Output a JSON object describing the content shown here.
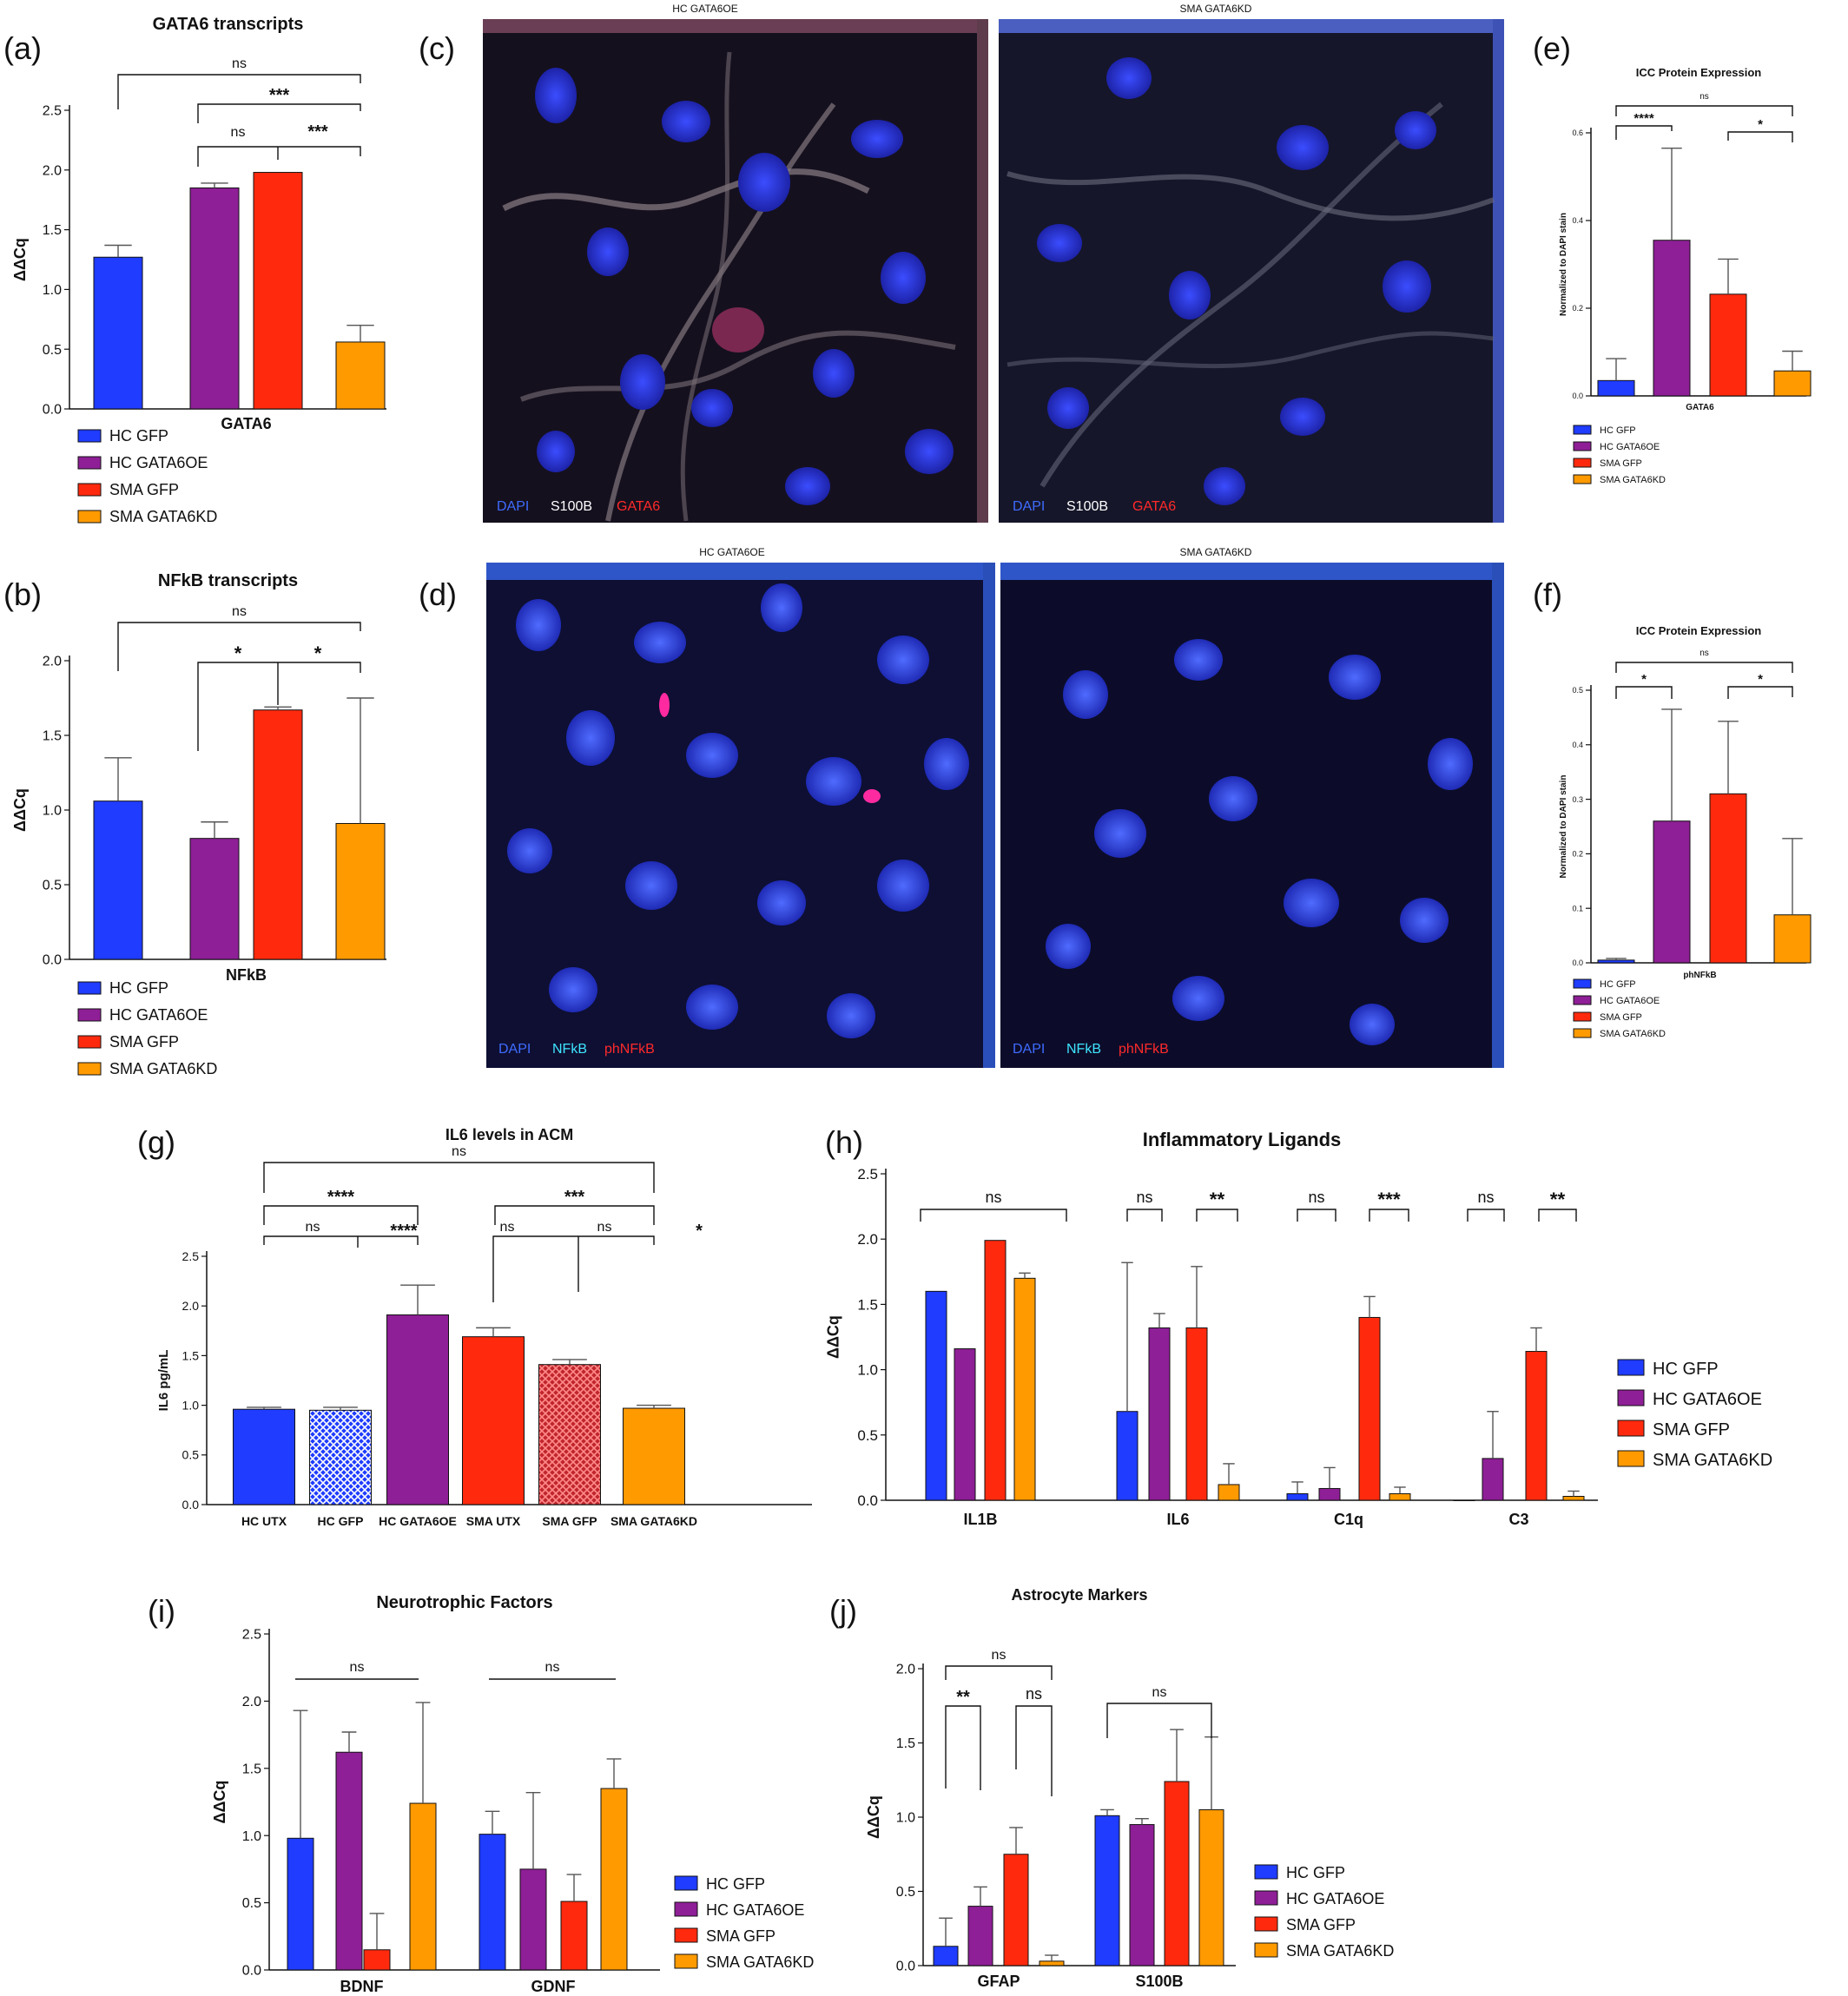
{
  "colors": {
    "hc_gfp": "#1f3cff",
    "hc_gata6oe": "#8e1f96",
    "sma_gfp": "#ff2a0d",
    "sma_gata6kd": "#ff9a00"
  },
  "legend_labels": [
    "HC GFP",
    "HC GATA6OE",
    "SMA GFP",
    "SMA GATA6KD"
  ],
  "panel_labels": {
    "a": "(a)",
    "b": "(b)",
    "c": "(c)",
    "d": "(d)",
    "e": "(e)",
    "f": "(f)",
    "g": "(g)",
    "h": "(h)",
    "i": "(i)",
    "j": "(j)"
  },
  "microscopy": {
    "c": {
      "left_title": "HC GATA6OE",
      "right_title": "SMA GATA6KD",
      "channels": [
        {
          "text": "DAPI",
          "color": "#3f6cff"
        },
        {
          "text": "S100B",
          "color": "#ffffff"
        },
        {
          "text": "GATA6",
          "color": "#ff2a2a"
        }
      ]
    },
    "d": {
      "left_title": "HC GATA6OE",
      "right_title": "SMA GATA6KD",
      "channels": [
        {
          "text": "DAPI",
          "color": "#3f6cff"
        },
        {
          "text": "NFkB",
          "color": "#3fe6ff"
        },
        {
          "text": "phNFkB",
          "color": "#ff2a2a"
        }
      ]
    }
  },
  "chart_data": [
    {
      "id": "a",
      "type": "bar",
      "title": "GATA6 transcripts",
      "ylabel": "ΔΔCq",
      "categories": [
        "GATA6"
      ],
      "ylim": [
        0,
        2.5
      ],
      "yticks": [
        "0.0",
        "0.5",
        "1.0",
        "1.5",
        "2.0",
        "2.5"
      ],
      "series": [
        {
          "name": "HC GFP",
          "values": [
            1.27
          ],
          "errors": [
            0.1
          ]
        },
        {
          "name": "HC GATA6OE",
          "values": [
            1.85
          ],
          "errors": [
            0.04
          ]
        },
        {
          "name": "SMA GFP",
          "values": [
            1.98
          ],
          "errors": [
            0.0
          ]
        },
        {
          "name": "SMA GATA6KD",
          "values": [
            0.56
          ],
          "errors": [
            0.14
          ]
        }
      ],
      "significance": [
        {
          "label": "ns"
        },
        {
          "label": "***"
        },
        {
          "label": "ns"
        },
        {
          "label": "***"
        }
      ]
    },
    {
      "id": "b",
      "type": "bar",
      "title": "NFkB transcripts",
      "ylabel": "ΔΔCq",
      "categories": [
        "NFkB"
      ],
      "ylim": [
        0,
        2.0
      ],
      "yticks": [
        "0.0",
        "0.5",
        "1.0",
        "1.5",
        "2.0"
      ],
      "series": [
        {
          "name": "HC GFP",
          "values": [
            1.06
          ],
          "errors": [
            0.29
          ]
        },
        {
          "name": "HC GATA6OE",
          "values": [
            0.81
          ],
          "errors": [
            0.11
          ]
        },
        {
          "name": "SMA GFP",
          "values": [
            1.67
          ],
          "errors": [
            0.02
          ]
        },
        {
          "name": "SMA GATA6KD",
          "values": [
            0.91
          ],
          "errors": [
            0.84
          ]
        }
      ],
      "significance": [
        {
          "label": "ns"
        },
        {
          "label": "*"
        },
        {
          "label": "*"
        }
      ]
    },
    {
      "id": "e",
      "type": "bar",
      "title": "ICC Protein Expression",
      "ylabel": "Normalized to DAPI stain",
      "categories": [
        "GATA6"
      ],
      "ylim": [
        0,
        0.6
      ],
      "yticks": [
        "0.0",
        "0.2",
        "0.4",
        "0.6"
      ],
      "series": [
        {
          "name": "HC GFP",
          "values": [
            0.035
          ],
          "errors": [
            0.05
          ]
        },
        {
          "name": "HC GATA6OE",
          "values": [
            0.355
          ],
          "errors": [
            0.21
          ]
        },
        {
          "name": "SMA GFP",
          "values": [
            0.232
          ],
          "errors": [
            0.08
          ]
        },
        {
          "name": "SMA GATA6KD",
          "values": [
            0.057
          ],
          "errors": [
            0.045
          ]
        }
      ],
      "significance": [
        {
          "label": "ns"
        },
        {
          "label": "****"
        },
        {
          "label": "*"
        }
      ]
    },
    {
      "id": "f",
      "type": "bar",
      "title": "ICC Protein Expression",
      "ylabel": "Normalized to DAPI stain",
      "categories": [
        "phNFkB"
      ],
      "ylim": [
        0,
        0.5
      ],
      "yticks": [
        "0.0",
        "0.1",
        "0.2",
        "0.3",
        "0.4",
        "0.5"
      ],
      "series": [
        {
          "name": "HC GFP",
          "values": [
            0.005
          ],
          "errors": [
            0.003
          ]
        },
        {
          "name": "HC GATA6OE",
          "values": [
            0.26
          ],
          "errors": [
            0.205
          ]
        },
        {
          "name": "SMA GFP",
          "values": [
            0.31
          ],
          "errors": [
            0.133
          ]
        },
        {
          "name": "SMA GATA6KD",
          "values": [
            0.088
          ],
          "errors": [
            0.14
          ]
        }
      ],
      "significance": [
        {
          "label": "ns"
        },
        {
          "label": "*"
        },
        {
          "label": "*"
        }
      ]
    },
    {
      "id": "g",
      "type": "bar",
      "title": "IL6 levels in ACM",
      "ylabel": "IL6 pg/mL",
      "categories": [
        "HC UTX",
        "HC GFP",
        "HC GATA6OE",
        "SMA UTX",
        "SMA GFP",
        "SMA GATA6KD"
      ],
      "ylim": [
        0,
        2.5
      ],
      "yticks": [
        "0.0",
        "0.5",
        "1.0",
        "1.5",
        "2.0",
        "2.5"
      ],
      "values": [
        0.96,
        0.95,
        1.91,
        1.69,
        1.41,
        0.97
      ],
      "errors": [
        0.02,
        0.03,
        0.3,
        0.09,
        0.05,
        0.03
      ],
      "colors": [
        "#1f3cff",
        "#4a5cff",
        "#8e1f96",
        "#ff2a0d",
        "#c0262c",
        "#ff9a00"
      ],
      "hatched": [
        false,
        true,
        false,
        false,
        true,
        false
      ],
      "significance": [
        {
          "label": "ns"
        },
        {
          "label": "****"
        },
        {
          "label": "***"
        },
        {
          "label": "ns"
        },
        {
          "label": "****"
        },
        {
          "label": "ns"
        },
        {
          "label": "ns"
        },
        {
          "label": "*"
        }
      ]
    },
    {
      "id": "h",
      "type": "bar",
      "title": "Inflammatory Ligands",
      "ylabel": "ΔΔCq",
      "categories": [
        "IL1B",
        "IL6",
        "C1q",
        "C3"
      ],
      "ylim": [
        0,
        2.5
      ],
      "yticks": [
        "0.0",
        "0.5",
        "1.0",
        "1.5",
        "2.0",
        "2.5"
      ],
      "series": [
        {
          "name": "HC GFP",
          "values": [
            1.6,
            0.68,
            0.05,
            0.0
          ],
          "errors": [
            0,
            1.14,
            0.09,
            0
          ]
        },
        {
          "name": "HC GATA6OE",
          "values": [
            1.16,
            1.32,
            0.09,
            0.32
          ],
          "errors": [
            0,
            0.11,
            0.16,
            0.36
          ]
        },
        {
          "name": "SMA GFP",
          "values": [
            1.99,
            1.32,
            1.4,
            1.14
          ],
          "errors": [
            0,
            0.47,
            0.16,
            0.18
          ]
        },
        {
          "name": "SMA GATA6KD",
          "values": [
            1.7,
            0.12,
            0.05,
            0.03
          ],
          "errors": [
            0.04,
            0.16,
            0.05,
            0.04
          ]
        }
      ],
      "significance": [
        {
          "label": "ns"
        },
        {
          "label": "ns"
        },
        {
          "label": "**"
        },
        {
          "label": "ns"
        },
        {
          "label": "***"
        },
        {
          "label": "ns"
        },
        {
          "label": "**"
        }
      ]
    },
    {
      "id": "i",
      "type": "bar",
      "title": "Neurotrophic Factors",
      "ylabel": "ΔΔCq",
      "categories": [
        "BDNF",
        "GDNF"
      ],
      "ylim": [
        0,
        2.5
      ],
      "yticks": [
        "0.0",
        "0.5",
        "1.0",
        "1.5",
        "2.0",
        "2.5"
      ],
      "series": [
        {
          "name": "HC GFP",
          "values": [
            0.98,
            1.01
          ],
          "errors": [
            0.95,
            0.17
          ]
        },
        {
          "name": "HC GATA6OE",
          "values": [
            1.62,
            0.75
          ],
          "errors": [
            0.15,
            0.57
          ]
        },
        {
          "name": "SMA GFP",
          "values": [
            0.15,
            0.51
          ],
          "errors": [
            0.27,
            0.2
          ]
        },
        {
          "name": "SMA GATA6KD",
          "values": [
            1.24,
            1.35
          ],
          "errors": [
            0.75,
            0.22
          ]
        }
      ],
      "significance": [
        {
          "label": "ns"
        },
        {
          "label": "ns"
        }
      ]
    },
    {
      "id": "j",
      "type": "bar",
      "title": "Astrocyte Markers",
      "ylabel": "ΔΔCq",
      "categories": [
        "GFAP",
        "S100B"
      ],
      "ylim": [
        0,
        2.0
      ],
      "yticks": [
        "0.0",
        "0.5",
        "1.0",
        "1.5",
        "2.0"
      ],
      "series": [
        {
          "name": "HC GFP",
          "values": [
            0.13,
            1.01
          ],
          "errors": [
            0.19,
            0.04
          ]
        },
        {
          "name": "HC GATA6OE",
          "values": [
            0.4,
            0.95
          ],
          "errors": [
            0.13,
            0.04
          ]
        },
        {
          "name": "SMA GFP",
          "values": [
            0.75,
            1.24
          ],
          "errors": [
            0.18,
            0.35
          ]
        },
        {
          "name": "SMA GATA6KD",
          "values": [
            0.03,
            1.05
          ],
          "errors": [
            0.04,
            0.49
          ]
        }
      ],
      "significance": [
        {
          "label": "ns"
        },
        {
          "label": "ns"
        },
        {
          "label": "**"
        },
        {
          "label": "ns"
        }
      ]
    }
  ]
}
